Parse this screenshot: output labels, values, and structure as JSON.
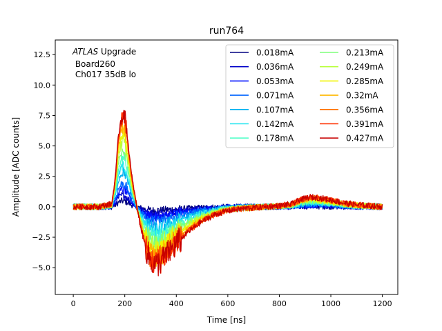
{
  "chart_data": {
    "type": "line",
    "title": "run764",
    "xlabel": "Time [ns]",
    "ylabel": "Amplitude [ADC counts]",
    "xlim": [
      -70,
      1260
    ],
    "ylim": [
      -7.2,
      13.7
    ],
    "xticks": [
      0,
      200,
      400,
      600,
      800,
      1000,
      1200
    ],
    "yticks": [
      -5.0,
      -2.5,
      0.0,
      2.5,
      5.0,
      7.5,
      10.0,
      12.5
    ],
    "ytick_labels": [
      "−5.0",
      "−2.5",
      "0.0",
      "2.5",
      "5.0",
      "7.5",
      "10.0",
      "12.5"
    ],
    "grid": false,
    "legend_position": "top-right",
    "annotation": {
      "line1_italic": "ATLAS",
      "line1_rest": " Upgrade",
      "line2": " Board260",
      "line3": " Ch017 35dB lo"
    },
    "waveform_shape_peak_normalized": {
      "t": [
        0,
        100,
        150,
        165,
        175,
        185,
        195,
        205,
        215,
        225,
        240,
        255,
        270,
        285,
        300,
        320,
        340,
        360,
        400,
        450,
        500,
        550,
        600,
        650,
        700,
        750,
        800,
        850,
        880,
        920,
        960,
        1000,
        1050,
        1100,
        1150,
        1200
      ],
      "v": [
        0.0,
        0.0,
        0.03,
        0.35,
        0.72,
        0.9,
        0.98,
        0.85,
        0.6,
        0.35,
        0.1,
        -0.12,
        -0.3,
        -0.45,
        -0.55,
        -0.6,
        -0.56,
        -0.5,
        -0.38,
        -0.25,
        -0.15,
        -0.08,
        -0.04,
        -0.02,
        -0.01,
        0.0,
        0.01,
        0.03,
        0.07,
        0.1,
        0.09,
        0.07,
        0.04,
        0.02,
        0.01,
        0.0
      ]
    },
    "series": [
      {
        "name": "0.018mA",
        "color": "#000080",
        "peak": 0.5
      },
      {
        "name": "0.036mA",
        "color": "#0000c8",
        "peak": 1.0
      },
      {
        "name": "0.053mA",
        "color": "#0010ff",
        "peak": 1.5
      },
      {
        "name": "0.071mA",
        "color": "#0064ff",
        "peak": 2.0
      },
      {
        "name": "0.107mA",
        "color": "#00b0f0",
        "peak": 3.0
      },
      {
        "name": "0.142mA",
        "color": "#26e6f0",
        "peak": 3.5
      },
      {
        "name": "0.178mA",
        "color": "#4fffc8",
        "peak": 4.3
      },
      {
        "name": "0.213mA",
        "color": "#7dff7a",
        "peak": 5.0
      },
      {
        "name": "0.249mA",
        "color": "#b9ff3c",
        "peak": 5.6
      },
      {
        "name": "0.285mA",
        "color": "#f1f500",
        "peak": 6.3
      },
      {
        "name": "0.32mA",
        "color": "#ffb800",
        "peak": 7.0
      },
      {
        "name": "0.356mA",
        "color": "#ff7000",
        "peak": 7.4
      },
      {
        "name": "0.391mA",
        "color": "#ff3000",
        "peak": 7.8
      },
      {
        "name": "0.427mA",
        "color": "#c80000",
        "peak": 8.0
      }
    ]
  }
}
